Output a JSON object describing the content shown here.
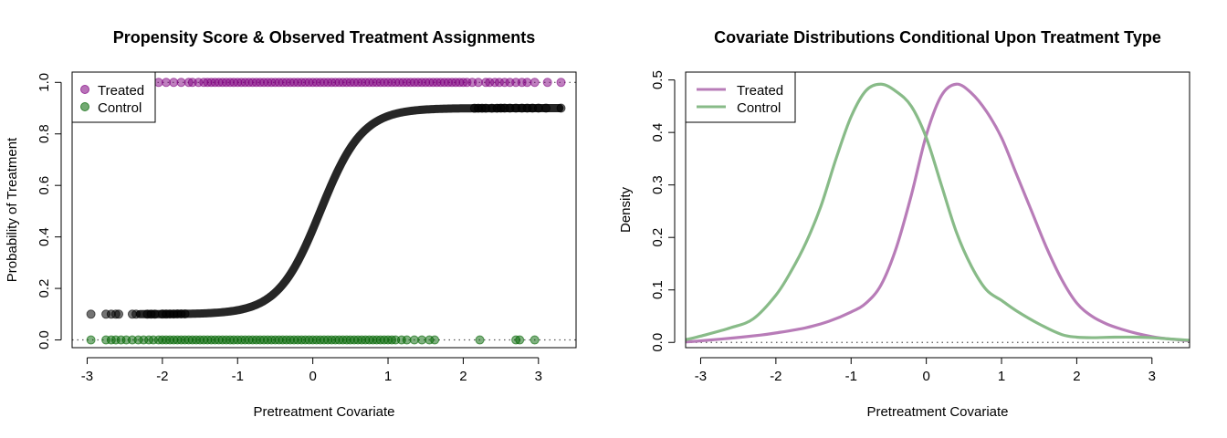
{
  "colors": {
    "treated": "#800080",
    "control": "#006400",
    "propensity": "#000000",
    "treated_line": "#B87CB8",
    "control_line": "#88BB88",
    "reference": "#555555"
  },
  "chart_data": [
    {
      "type": "scatter",
      "title": "Propensity Score & Observed Treatment Assignments",
      "xlabel": "Pretreatment Covariate",
      "ylabel": "Probability of Treatment",
      "xlim": [
        -3.2,
        3.5
      ],
      "ylim": [
        -0.03,
        1.04
      ],
      "xticks": [
        -3,
        -2,
        -1,
        0,
        1,
        2,
        3
      ],
      "yticks": [
        "0.0",
        "0.2",
        "0.4",
        "0.6",
        "0.8",
        "1.0"
      ],
      "reference_lines": [
        0,
        1
      ],
      "legend": {
        "placement": "top-left",
        "entries": [
          "Treated",
          "Control"
        ]
      },
      "propensity_curve": {
        "lower": 0.1,
        "upper": 0.9,
        "center": 0.1,
        "scale": 0.28,
        "x_range": [
          -2.3,
          3.3
        ]
      },
      "propensity_points_x": [
        -2.95,
        -2.75,
        -2.68,
        -2.62,
        -2.58,
        -2.4,
        -2.35,
        -2.2,
        -2.15,
        -2.1,
        -2.0,
        -1.95,
        -1.9,
        -1.85,
        -1.8,
        -1.75,
        -1.7,
        2.15,
        2.2,
        2.25,
        2.3,
        2.38,
        2.45,
        2.5,
        2.55,
        2.62,
        2.7,
        2.78,
        2.85,
        2.92,
        3.0,
        3.1,
        3.3
      ],
      "treated_x": [
        -2.15,
        -2.05,
        -1.95,
        -1.85,
        -1.75,
        -1.65,
        -1.6,
        -1.52,
        -1.45,
        -1.4,
        -1.35,
        -1.3,
        -1.25,
        -1.2,
        -1.15,
        -1.1,
        -1.05,
        -1.0,
        -0.95,
        -0.9,
        -0.85,
        -0.8,
        -0.75,
        -0.7,
        -0.65,
        -0.6,
        -0.55,
        -0.5,
        -0.45,
        -0.4,
        -0.35,
        -0.3,
        -0.25,
        -0.2,
        -0.15,
        -0.1,
        -0.05,
        0.0,
        0.05,
        0.1,
        0.15,
        0.2,
        0.25,
        0.3,
        0.35,
        0.4,
        0.45,
        0.5,
        0.55,
        0.6,
        0.65,
        0.7,
        0.75,
        0.8,
        0.85,
        0.9,
        0.95,
        1.0,
        1.05,
        1.1,
        1.15,
        1.2,
        1.25,
        1.3,
        1.35,
        1.4,
        1.45,
        1.5,
        1.55,
        1.6,
        1.65,
        1.7,
        1.75,
        1.8,
        1.85,
        1.9,
        1.95,
        2.0,
        2.05,
        2.12,
        2.2,
        2.3,
        2.35,
        2.42,
        2.48,
        2.55,
        2.62,
        2.7,
        2.78,
        2.85,
        2.95,
        3.12,
        3.3
      ],
      "control_x": [
        -2.95,
        -2.75,
        -2.68,
        -2.62,
        -2.55,
        -2.48,
        -2.4,
        -2.32,
        -2.25,
        -2.18,
        -2.12,
        -2.05,
        -2.0,
        -1.95,
        -1.9,
        -1.85,
        -1.8,
        -1.75,
        -1.7,
        -1.65,
        -1.6,
        -1.55,
        -1.5,
        -1.45,
        -1.4,
        -1.35,
        -1.3,
        -1.25,
        -1.2,
        -1.15,
        -1.1,
        -1.05,
        -1.0,
        -0.95,
        -0.9,
        -0.85,
        -0.8,
        -0.75,
        -0.7,
        -0.65,
        -0.6,
        -0.55,
        -0.5,
        -0.45,
        -0.4,
        -0.35,
        -0.3,
        -0.25,
        -0.2,
        -0.15,
        -0.1,
        -0.05,
        0.0,
        0.05,
        0.1,
        0.15,
        0.2,
        0.25,
        0.3,
        0.35,
        0.4,
        0.45,
        0.5,
        0.55,
        0.6,
        0.65,
        0.7,
        0.75,
        0.8,
        0.85,
        0.9,
        0.95,
        1.0,
        1.05,
        1.1,
        1.18,
        1.25,
        1.35,
        1.45,
        1.55,
        1.62,
        2.22,
        2.7,
        2.75,
        2.95
      ]
    },
    {
      "type": "line",
      "title": "Covariate Distributions Conditional Upon Treatment Type",
      "xlabel": "Pretreatment Covariate",
      "ylabel": "Density",
      "xlim": [
        -3.2,
        3.5
      ],
      "ylim": [
        -0.01,
        0.515
      ],
      "xticks": [
        -3,
        -2,
        -1,
        0,
        1,
        2,
        3
      ],
      "yticks": [
        "0.0",
        "0.1",
        "0.2",
        "0.3",
        "0.4",
        "0.5"
      ],
      "reference_lines": [
        0
      ],
      "legend": {
        "placement": "top-left",
        "entries": [
          "Treated",
          "Control"
        ]
      },
      "series": [
        {
          "name": "Treated",
          "x": [
            -3.2,
            -3.0,
            -2.6,
            -2.2,
            -2.0,
            -1.6,
            -1.3,
            -1.0,
            -0.8,
            -0.6,
            -0.4,
            -0.2,
            0.0,
            0.2,
            0.4,
            0.6,
            0.8,
            1.0,
            1.2,
            1.4,
            1.6,
            1.8,
            2.0,
            2.2,
            2.4,
            2.6,
            2.8,
            3.0,
            3.2,
            3.5
          ],
          "y": [
            0.001,
            0.003,
            0.008,
            0.014,
            0.018,
            0.028,
            0.04,
            0.058,
            0.075,
            0.11,
            0.18,
            0.28,
            0.395,
            0.47,
            0.492,
            0.475,
            0.44,
            0.39,
            0.32,
            0.25,
            0.18,
            0.12,
            0.075,
            0.05,
            0.035,
            0.025,
            0.017,
            0.011,
            0.007,
            0.003
          ]
        },
        {
          "name": "Control",
          "x": [
            -3.2,
            -3.0,
            -2.6,
            -2.3,
            -2.0,
            -1.8,
            -1.6,
            -1.4,
            -1.2,
            -1.0,
            -0.8,
            -0.6,
            -0.4,
            -0.2,
            0.0,
            0.2,
            0.4,
            0.6,
            0.8,
            1.0,
            1.2,
            1.5,
            1.8,
            2.0,
            2.2,
            2.5,
            2.8,
            3.0,
            3.2,
            3.5
          ],
          "y": [
            0.005,
            0.012,
            0.028,
            0.045,
            0.09,
            0.135,
            0.19,
            0.26,
            0.35,
            0.43,
            0.48,
            0.492,
            0.478,
            0.45,
            0.39,
            0.3,
            0.21,
            0.145,
            0.1,
            0.08,
            0.06,
            0.035,
            0.015,
            0.01,
            0.009,
            0.01,
            0.01,
            0.009,
            0.007,
            0.004
          ]
        }
      ]
    }
  ]
}
